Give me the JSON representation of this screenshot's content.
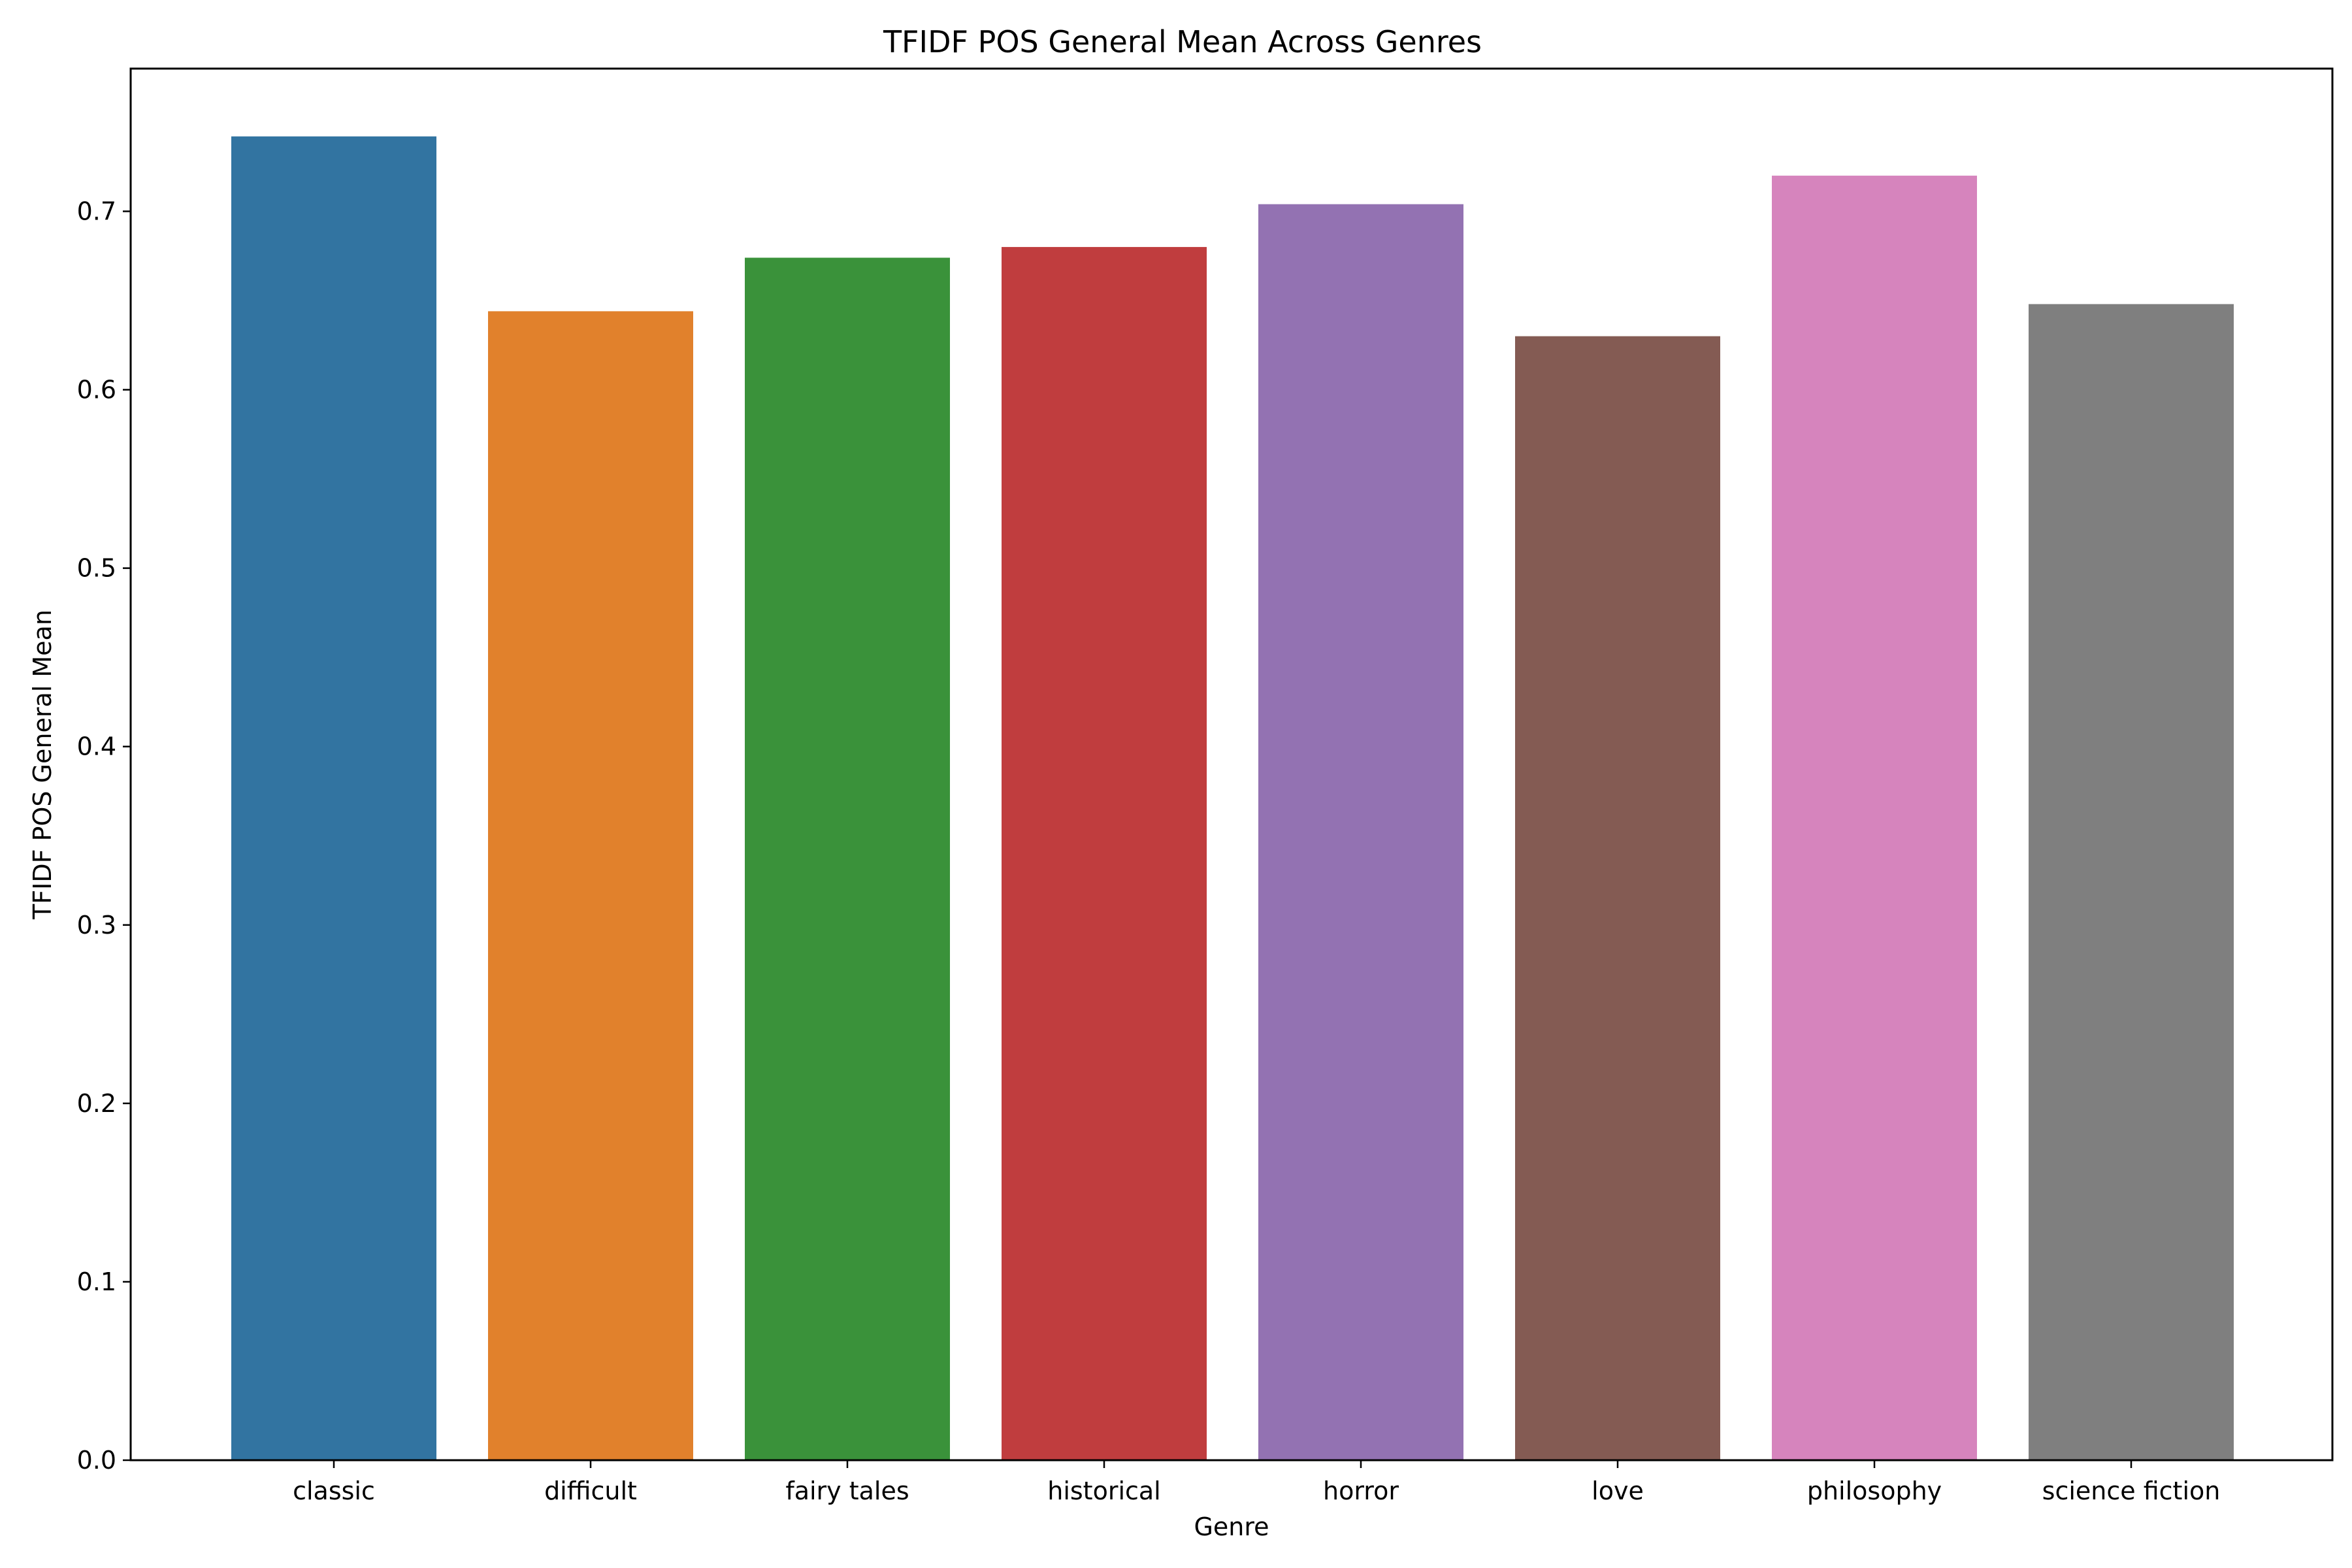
{
  "chart_data": {
    "type": "bar",
    "title": "TFIDF POS General Mean Across Genres",
    "xlabel": "Genre",
    "ylabel": "TFIDF POS General Mean",
    "categories": [
      "classic",
      "difficult",
      "fairy tales",
      "historical",
      "horror",
      "love",
      "philosophy",
      "science fiction"
    ],
    "values": [
      0.742,
      0.644,
      0.674,
      0.68,
      0.704,
      0.63,
      0.72,
      0.648
    ],
    "colors": [
      "#3274a1",
      "#e1812c",
      "#3a923a",
      "#c03d3e",
      "#9372b2",
      "#845b53",
      "#d684bd",
      "#7f7f7f"
    ],
    "ylim": [
      0,
      0.78
    ],
    "yticks": [
      "0.0",
      "0.1",
      "0.2",
      "0.3",
      "0.4",
      "0.5",
      "0.6",
      "0.7"
    ],
    "grid": false,
    "legend": "none"
  }
}
